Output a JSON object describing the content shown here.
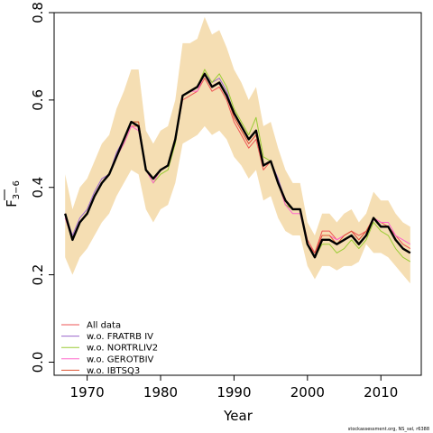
{
  "chart_data": {
    "type": "line",
    "title": "",
    "xlabel": "Year",
    "ylabel_main": "F",
    "ylabel_sub": "3−6",
    "xlim": [
      1965.5,
      2015.5
    ],
    "ylim": [
      -0.03,
      0.8
    ],
    "xticks": [
      1970,
      1980,
      1990,
      2000,
      2010
    ],
    "yticks": [
      0.0,
      0.2,
      0.4,
      0.6,
      0.8
    ],
    "ytick_labels": [
      "0.0",
      "0.2",
      "0.4",
      "0.6",
      "0.8"
    ],
    "x": [
      1967,
      1968,
      1969,
      1970,
      1971,
      1972,
      1973,
      1974,
      1975,
      1976,
      1977,
      1978,
      1979,
      1980,
      1981,
      1982,
      1983,
      1984,
      1985,
      1986,
      1987,
      1988,
      1989,
      1990,
      1991,
      1992,
      1993,
      1994,
      1995,
      1996,
      1997,
      1998,
      1999,
      2000,
      2001,
      2002,
      2003,
      2004,
      2005,
      2006,
      2007,
      2008,
      2009,
      2010,
      2011,
      2012,
      2013,
      2014
    ],
    "band": {
      "color": "#f5deb3",
      "lower": [
        0.24,
        0.2,
        0.24,
        0.26,
        0.29,
        0.32,
        0.34,
        0.38,
        0.41,
        0.44,
        0.43,
        0.35,
        0.32,
        0.35,
        0.36,
        0.41,
        0.5,
        0.51,
        0.52,
        0.54,
        0.52,
        0.53,
        0.51,
        0.47,
        0.45,
        0.42,
        0.44,
        0.37,
        0.38,
        0.33,
        0.3,
        0.29,
        0.29,
        0.22,
        0.19,
        0.22,
        0.22,
        0.21,
        0.22,
        0.22,
        0.23,
        0.27,
        0.25,
        0.25,
        0.24,
        0.22,
        0.2,
        0.18
      ],
      "upper": [
        0.43,
        0.35,
        0.4,
        0.42,
        0.46,
        0.5,
        0.52,
        0.58,
        0.62,
        0.67,
        0.67,
        0.53,
        0.5,
        0.53,
        0.54,
        0.6,
        0.73,
        0.73,
        0.74,
        0.79,
        0.75,
        0.76,
        0.72,
        0.67,
        0.64,
        0.6,
        0.63,
        0.54,
        0.55,
        0.49,
        0.44,
        0.41,
        0.41,
        0.32,
        0.29,
        0.34,
        0.34,
        0.32,
        0.34,
        0.35,
        0.32,
        0.34,
        0.39,
        0.37,
        0.37,
        0.34,
        0.32,
        0.31
      ]
    },
    "series": [
      {
        "name": "All data",
        "color": "#ee5555",
        "width": 1,
        "values": [
          0.33,
          0.28,
          0.32,
          0.34,
          0.38,
          0.41,
          0.43,
          0.47,
          0.5,
          0.54,
          0.54,
          0.44,
          0.42,
          0.44,
          0.45,
          0.51,
          0.6,
          0.61,
          0.62,
          0.65,
          0.62,
          0.63,
          0.6,
          0.55,
          0.52,
          0.49,
          0.51,
          0.44,
          0.46,
          0.41,
          0.36,
          0.35,
          0.35,
          0.28,
          0.25,
          0.3,
          0.3,
          0.28,
          0.29,
          0.3,
          0.29,
          0.3,
          0.33,
          0.32,
          0.31,
          0.29,
          0.27,
          0.26
        ]
      },
      {
        "name": "w.o. FRATRB IV",
        "color": "#9966cc",
        "width": 1,
        "values": [
          0.34,
          0.29,
          0.33,
          0.35,
          0.39,
          0.42,
          0.43,
          0.48,
          0.51,
          0.55,
          0.55,
          0.44,
          0.42,
          0.44,
          0.45,
          0.51,
          0.61,
          0.62,
          0.63,
          0.66,
          0.64,
          0.65,
          0.62,
          0.57,
          0.54,
          0.51,
          0.53,
          0.45,
          0.46,
          0.42,
          0.37,
          0.35,
          0.35,
          0.27,
          0.25,
          0.28,
          0.28,
          0.27,
          0.28,
          0.29,
          0.27,
          0.29,
          0.33,
          0.31,
          0.31,
          0.28,
          0.26,
          0.25
        ]
      },
      {
        "name": "w.o. NORTRLIV2",
        "color": "#99cc33",
        "width": 1,
        "values": [
          0.33,
          0.28,
          0.32,
          0.34,
          0.38,
          0.41,
          0.43,
          0.47,
          0.5,
          0.55,
          0.55,
          0.44,
          0.41,
          0.43,
          0.44,
          0.5,
          0.61,
          0.62,
          0.63,
          0.67,
          0.64,
          0.66,
          0.63,
          0.58,
          0.55,
          0.52,
          0.56,
          0.47,
          0.46,
          0.41,
          0.36,
          0.35,
          0.35,
          0.27,
          0.24,
          0.27,
          0.27,
          0.25,
          0.26,
          0.28,
          0.26,
          0.28,
          0.32,
          0.3,
          0.29,
          0.26,
          0.24,
          0.23
        ]
      },
      {
        "name": "w.o. GEROTBIV",
        "color": "#ff66cc",
        "width": 1,
        "values": [
          0.33,
          0.28,
          0.32,
          0.34,
          0.38,
          0.41,
          0.43,
          0.47,
          0.5,
          0.54,
          0.53,
          0.44,
          0.41,
          0.44,
          0.45,
          0.51,
          0.61,
          0.62,
          0.62,
          0.66,
          0.63,
          0.64,
          0.61,
          0.56,
          0.53,
          0.5,
          0.52,
          0.45,
          0.46,
          0.41,
          0.36,
          0.34,
          0.34,
          0.27,
          0.25,
          0.29,
          0.29,
          0.28,
          0.29,
          0.3,
          0.28,
          0.3,
          0.33,
          0.32,
          0.32,
          0.29,
          0.28,
          0.27
        ]
      },
      {
        "name": "w.o. IBTSQ3",
        "color": "#dd5533",
        "width": 1,
        "values": [
          0.34,
          0.28,
          0.32,
          0.34,
          0.38,
          0.41,
          0.43,
          0.47,
          0.51,
          0.55,
          0.55,
          0.44,
          0.42,
          0.44,
          0.45,
          0.51,
          0.61,
          0.62,
          0.63,
          0.66,
          0.63,
          0.64,
          0.61,
          0.56,
          0.53,
          0.5,
          0.52,
          0.45,
          0.46,
          0.41,
          0.37,
          0.35,
          0.35,
          0.27,
          0.25,
          0.29,
          0.29,
          0.27,
          0.29,
          0.3,
          0.28,
          0.3,
          0.33,
          0.31,
          0.31,
          0.28,
          0.26,
          0.25
        ]
      },
      {
        "name": "",
        "color": "#000000",
        "width": 2.4,
        "values": [
          0.34,
          0.28,
          0.32,
          0.34,
          0.38,
          0.41,
          0.43,
          0.47,
          0.51,
          0.55,
          0.54,
          0.44,
          0.42,
          0.44,
          0.45,
          0.51,
          0.61,
          0.62,
          0.63,
          0.66,
          0.63,
          0.64,
          0.61,
          0.57,
          0.54,
          0.51,
          0.53,
          0.45,
          0.46,
          0.41,
          0.37,
          0.35,
          0.35,
          0.27,
          0.24,
          0.28,
          0.28,
          0.27,
          0.28,
          0.29,
          0.27,
          0.29,
          0.33,
          0.31,
          0.31,
          0.28,
          0.26,
          0.25
        ]
      }
    ],
    "legend": {
      "placement": "bottom-left",
      "entries": [
        {
          "label": "All data",
          "color": "#ee5555"
        },
        {
          "label": "w.o. FRATRB IV",
          "color": "#9966cc"
        },
        {
          "label": "w.o. NORTRLIV2",
          "color": "#99cc33"
        },
        {
          "label": "w.o. GEROTBIV",
          "color": "#ff66cc"
        },
        {
          "label": "w.o. IBTSQ3",
          "color": "#dd5533"
        }
      ]
    },
    "credit": "stockassessment.org, NS_sel, r6388"
  }
}
